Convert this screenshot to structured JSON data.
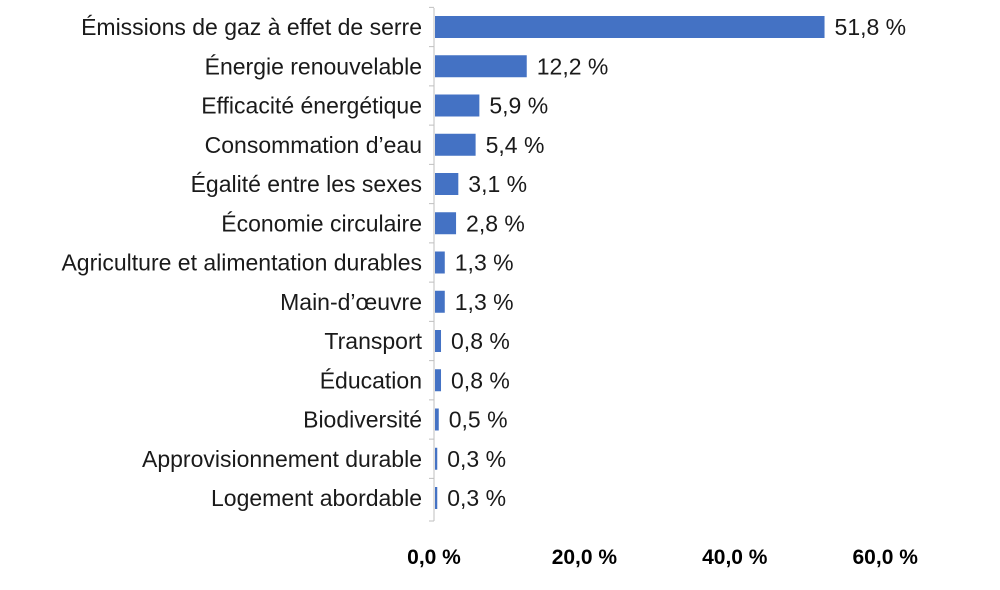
{
  "chart_data": {
    "type": "bar",
    "orientation": "horizontal",
    "title": "",
    "xlabel": "",
    "ylabel": "",
    "categories": [
      "Émissions de gaz à effet de serre",
      "Énergie renouvelable",
      "Efficacité énergétique",
      "Consommation d’eau",
      "Égalité entre les sexes",
      "Économie circulaire",
      "Agriculture et alimentation durables",
      "Main-d’œuvre",
      "Transport",
      "Éducation",
      "Biodiversité",
      "Approvisionnement durable",
      "Logement abordable"
    ],
    "values": [
      51.8,
      12.2,
      5.9,
      5.4,
      3.1,
      2.8,
      1.3,
      1.3,
      0.8,
      0.8,
      0.5,
      0.3,
      0.3
    ],
    "data_labels": [
      "51,8 %",
      "12,2 %",
      "5,9 %",
      "5,4 %",
      "3,1 %",
      "2,8 %",
      "1,3 %",
      "1,3 %",
      "0,8 %",
      "0,8 %",
      "0,5 %",
      "0,3 %",
      "0,3 %"
    ],
    "xlim": [
      0,
      60
    ],
    "x_ticks": [
      0,
      20,
      40,
      60
    ],
    "x_tick_labels": [
      "0,0 %",
      "20,0 %",
      "40,0 %",
      "60,0 %"
    ],
    "grid": false,
    "legend": "none",
    "bar_color": "#4472C4"
  }
}
